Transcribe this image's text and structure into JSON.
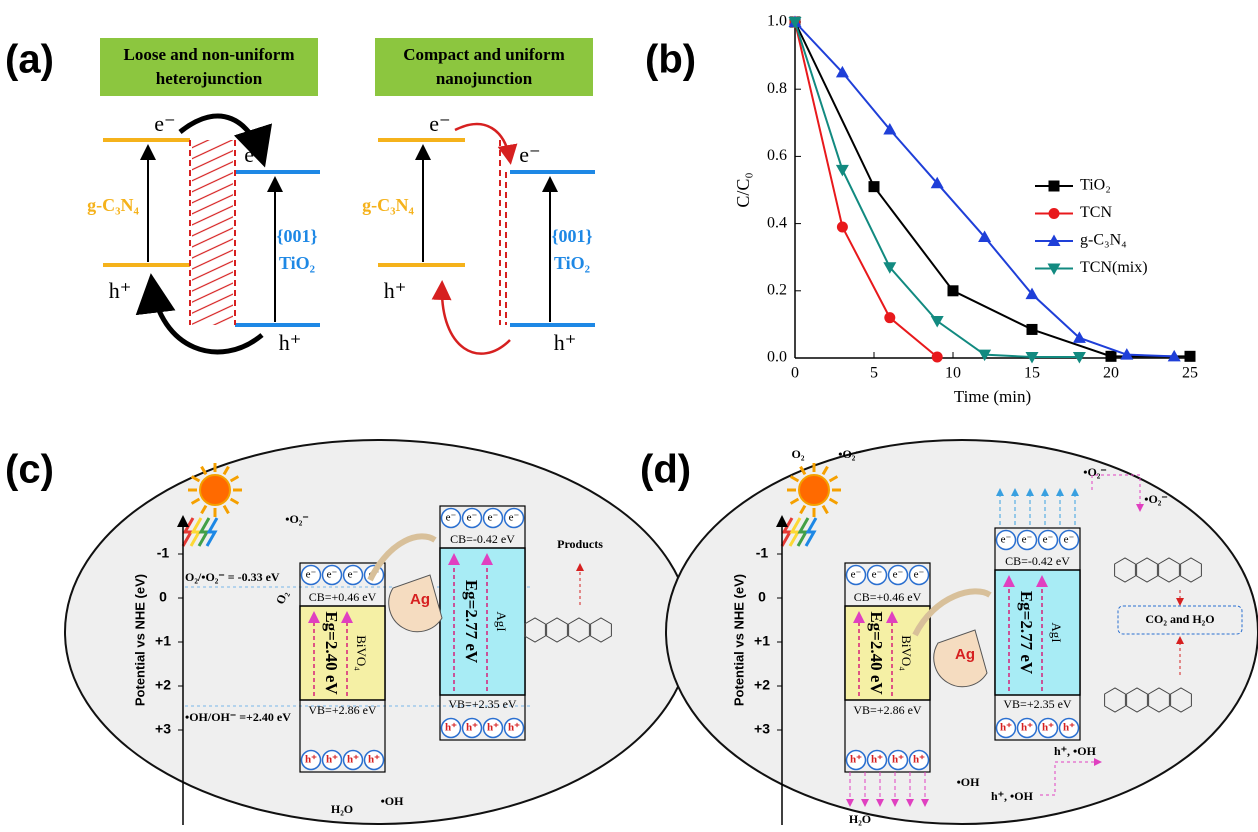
{
  "panel_a": {
    "label": "(a)",
    "junctions": [
      {
        "title": [
          "Loose and non-uniform",
          "heterojunction"
        ]
      },
      {
        "title": [
          "Compact and uniform",
          "nanojunction"
        ]
      }
    ],
    "electron": "e⁻",
    "hole": "h⁺",
    "left_material": "g-C₃N₄",
    "facet": "{001}",
    "right_material": "TiO₂"
  },
  "chart_data": {
    "type": "line",
    "label": "(b)",
    "x_label": "Time (min)",
    "y_label": "C/C₀",
    "xlim": [
      0,
      25
    ],
    "xticks": [
      0,
      5,
      10,
      15,
      20,
      25
    ],
    "ylim": [
      0,
      1
    ],
    "yticks": [
      {
        "value": 0,
        "label": "0.0"
      },
      0.2,
      0.4,
      0.6,
      0.8,
      {
        "value": 1,
        "label": "1.0"
      }
    ],
    "series": [
      {
        "name": "TiO₂",
        "color": "#000000",
        "marker": "square",
        "x": [
          0,
          5,
          10,
          15,
          20,
          25
        ],
        "values": [
          1.0,
          0.51,
          0.2,
          0.085,
          0.005,
          0.005
        ]
      },
      {
        "name": "TCN",
        "color": "#e8191c",
        "marker": "circle",
        "x": [
          0,
          3,
          6,
          9
        ],
        "values": [
          1.0,
          0.39,
          0.12,
          0.003
        ]
      },
      {
        "name": "g-C₃N₄",
        "color": "#1f3fd8",
        "marker": "triangle-up",
        "x": [
          0,
          3,
          6,
          9,
          12,
          15,
          18,
          21,
          24
        ],
        "values": [
          1.0,
          0.85,
          0.68,
          0.52,
          0.36,
          0.19,
          0.06,
          0.01,
          0.005
        ]
      },
      {
        "name": "TCN(mix)",
        "color": "#128a80",
        "marker": "triangle-down",
        "x": [
          0,
          3,
          6,
          9,
          12,
          15,
          18
        ],
        "values": [
          1.0,
          0.56,
          0.27,
          0.11,
          0.01,
          0.003,
          0.003
        ]
      }
    ]
  },
  "panel_c": {
    "label": "(c)",
    "axis_label": "Potential vs NHE (eV)",
    "ticks": [
      "-1",
      "0",
      "+1",
      "+2",
      "+3"
    ],
    "electron": "e⁻",
    "hole": "h⁺",
    "metal": "Ag",
    "bivo4": {
      "name": "BiVO₄",
      "cb": "CB=+0.46 eV",
      "vb": "VB=+2.86 eV",
      "eg": "Eg=2.40 eV"
    },
    "agi": {
      "name": "AgI",
      "cb": "CB=-0.42 eV",
      "vb": "VB=+2.35 eV",
      "eg": "Eg=2.77 eV"
    },
    "notes": [
      "O₂/•O₂⁻ = -0.33 eV",
      "•OH/OH⁻ =+2.40 eV",
      "O₂",
      "•O₂⁻",
      "•OH",
      "H₂O",
      "Products"
    ]
  },
  "panel_d": {
    "label": "(d)",
    "axis_label": "Potential vs NHE (eV)",
    "ticks": [
      "-1",
      "0",
      "+1",
      "+2",
      "+3"
    ],
    "electron": "e⁻",
    "hole": "h⁺",
    "metal": "Ag",
    "bivo4": {
      "name": "BiVO₄",
      "cb": "CB=+0.46 eV",
      "vb": "VB=+2.86 eV",
      "eg": "Eg=2.40 eV"
    },
    "agi": {
      "name": "AgI",
      "cb": "CB=-0.42 eV",
      "vb": "VB=+2.35 eV",
      "eg": "Eg=2.77 eV"
    },
    "notes": [
      "O₂",
      "•O₂⁻",
      "•O₂⁻",
      "•O₂⁻",
      "CO₂ and H₂O",
      "h⁺, •OH",
      "h⁺, •OH",
      "•OH",
      "H₂O"
    ]
  }
}
